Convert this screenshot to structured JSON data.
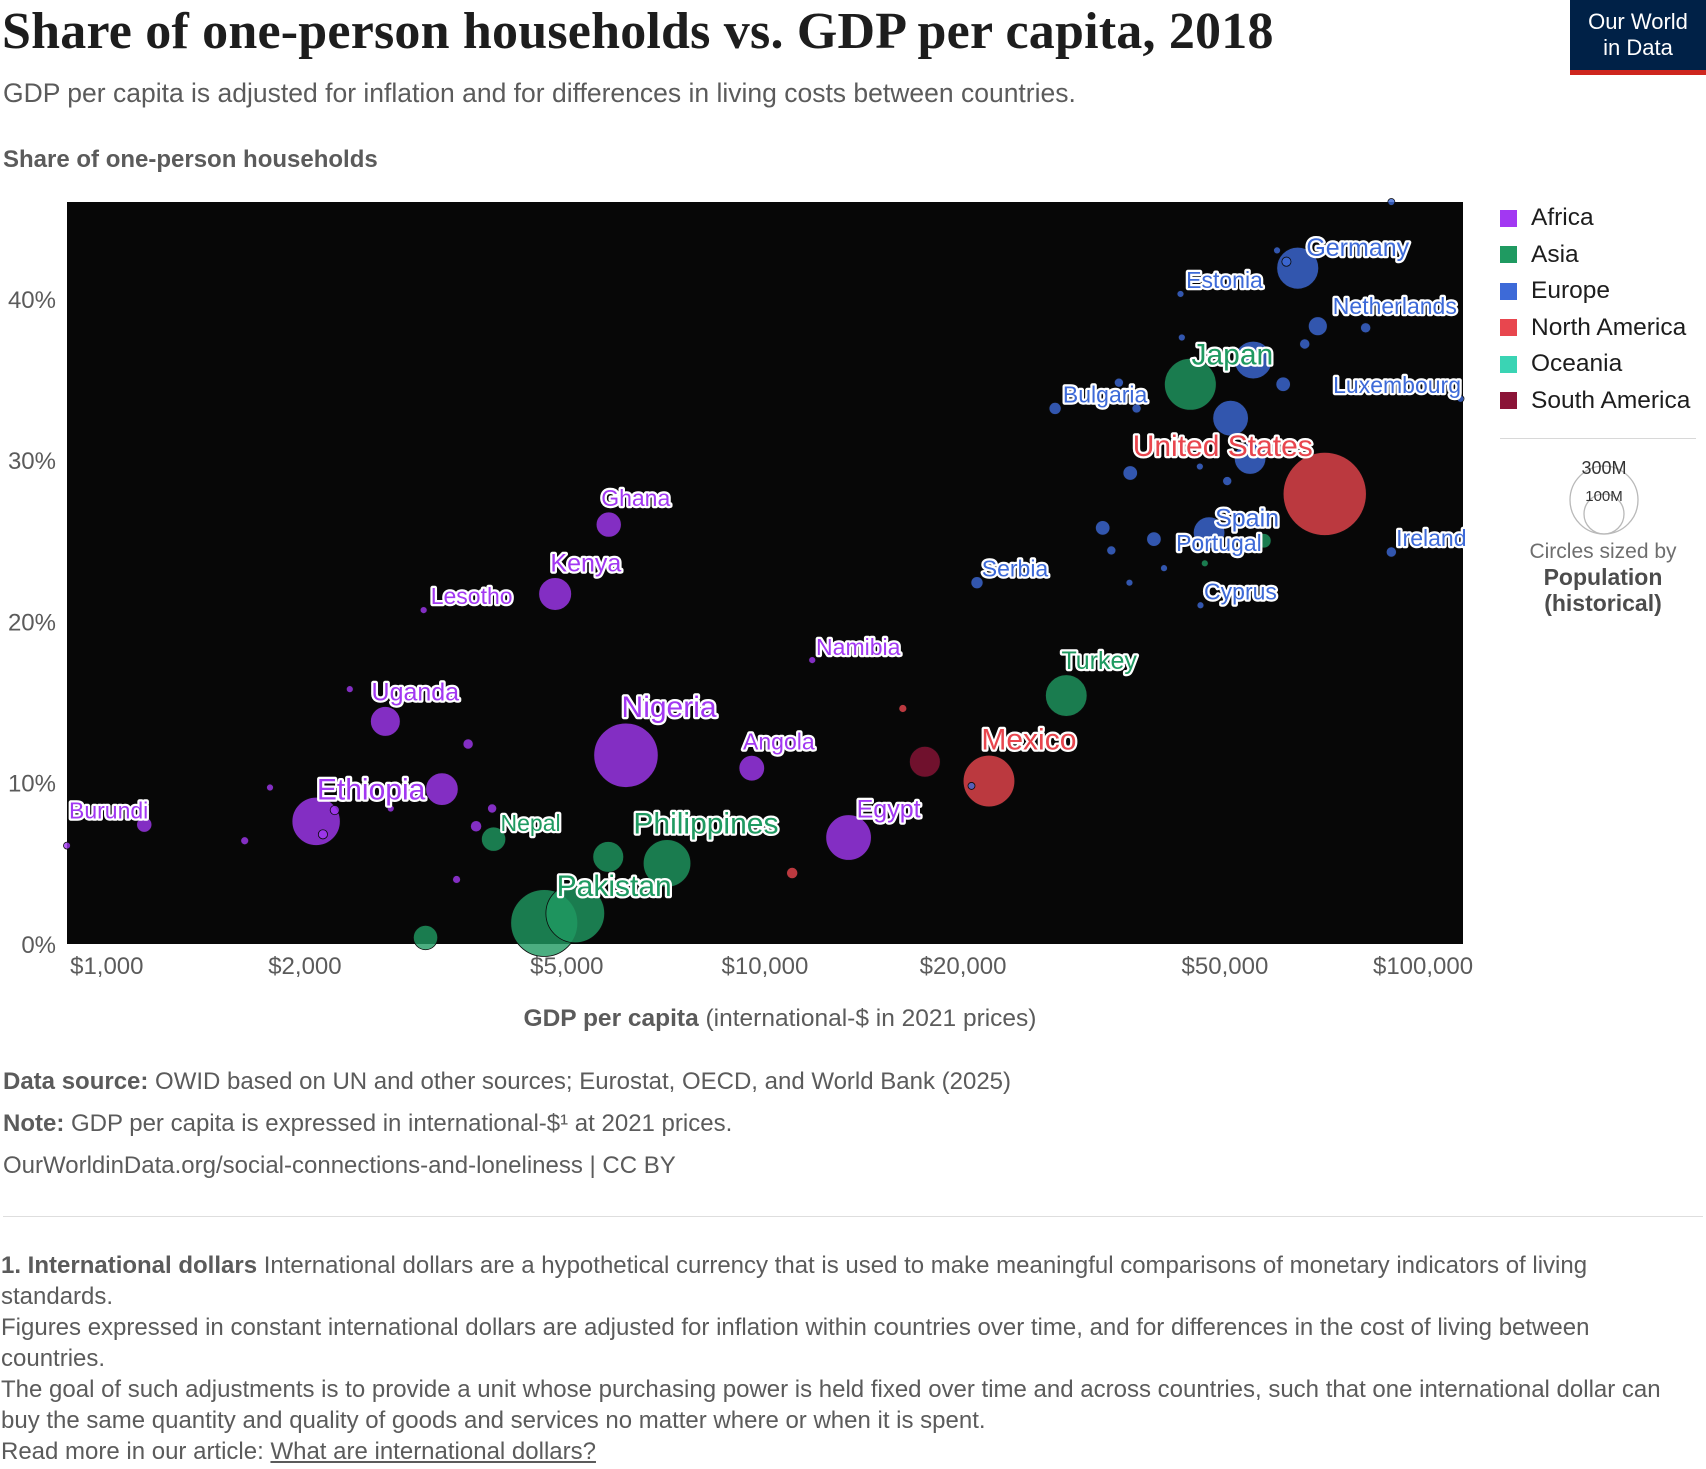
{
  "header": {
    "title": "Share of one-person households vs. GDP per capita, 2018",
    "subtitle": "GDP per capita is adjusted for inflation and for differences in living costs between countries.",
    "logo_line1": "Our World",
    "logo_line2": "in Data",
    "y_axis_title": "Share of one-person households"
  },
  "legend": {
    "items": [
      {
        "label": "Africa",
        "color": "#a238f2"
      },
      {
        "label": "Asia",
        "color": "#1f9a61"
      },
      {
        "label": "Europe",
        "color": "#3d6ad8"
      },
      {
        "label": "North America",
        "color": "#e8464e"
      },
      {
        "label": "Oceania",
        "color": "#3ad4b4"
      },
      {
        "label": "South America",
        "color": "#8b1437"
      }
    ],
    "size_big": "300M",
    "size_small": "100M",
    "size_caption": "Circles sized by",
    "size_caption_bold1": "Population",
    "size_caption_bold2": "(historical)"
  },
  "chart_data": {
    "type": "scatter",
    "title": "Share of one-person households vs. GDP per capita, 2018",
    "xlabel_bold": "GDP per capita",
    "xlabel_rest": " (international-$ in 2021 prices)",
    "ylabel": "Share of one-person households",
    "x_scale": "log",
    "xlim": [
      870,
      115000
    ],
    "ylim": [
      0,
      46
    ],
    "x_ticks": [
      1000,
      2000,
      5000,
      10000,
      20000,
      50000,
      100000
    ],
    "x_tick_labels": [
      "$1,000",
      "$2,000",
      "$5,000",
      "$10,000",
      "$20,000",
      "$50,000",
      "$100,000"
    ],
    "y_ticks": [
      0,
      10,
      20,
      30,
      40
    ],
    "y_tick_labels": [
      "0%",
      "10%",
      "20%",
      "30%",
      "40%"
    ],
    "grid": false,
    "background": "#070707",
    "legend_position": "right",
    "size_by": "population",
    "points": [
      {
        "name": "Burundi",
        "label": "Burundi",
        "region": "Africa",
        "x": 1140,
        "y": 7.4,
        "pop": 11
      },
      {
        "name": "",
        "region": "Africa",
        "x": 870,
        "y": 6.1,
        "pop": 2
      },
      {
        "name": "",
        "region": "Africa",
        "x": 1620,
        "y": 6.4,
        "pop": 3
      },
      {
        "name": "",
        "region": "Africa",
        "x": 1770,
        "y": 9.7,
        "pop": 1
      },
      {
        "name": "Ethiopia",
        "label": "Ethiopia",
        "region": "Africa",
        "x": 2080,
        "y": 7.6,
        "pop": 110
      },
      {
        "name": "",
        "region": "Africa",
        "x": 2130,
        "y": 6.8,
        "pop": 4
      },
      {
        "name": "",
        "region": "Africa",
        "x": 2220,
        "y": 8.3,
        "pop": 4
      },
      {
        "name": "",
        "region": "Africa",
        "x": 2340,
        "y": 15.8,
        "pop": 2
      },
      {
        "name": "Uganda",
        "label": "Uganda",
        "region": "Africa",
        "x": 2650,
        "y": 13.8,
        "pop": 42
      },
      {
        "name": "",
        "region": "Africa",
        "x": 2700,
        "y": 8.4,
        "pop": 1
      },
      {
        "name": "Lesotho",
        "label": "Lesotho",
        "region": "Africa",
        "x": 3030,
        "y": 20.7,
        "pop": 2
      },
      {
        "name": "",
        "region": "Africa",
        "x": 3230,
        "y": 9.6,
        "pop": 50
      },
      {
        "name": "",
        "region": "Africa",
        "x": 3540,
        "y": 12.4,
        "pop": 5
      },
      {
        "name": "",
        "region": "Africa",
        "x": 3400,
        "y": 4.0,
        "pop": 3
      },
      {
        "name": "",
        "region": "Africa",
        "x": 3640,
        "y": 7.3,
        "pop": 6
      },
      {
        "name": "",
        "region": "Africa",
        "x": 3850,
        "y": 8.4,
        "pop": 4
      },
      {
        "name": "Kenya",
        "label": "Kenya",
        "region": "Africa",
        "x": 4800,
        "y": 21.7,
        "pop": 51
      },
      {
        "name": "Ghana",
        "label": "Ghana",
        "region": "Africa",
        "x": 5790,
        "y": 26.0,
        "pop": 30
      },
      {
        "name": "Nigeria",
        "label": "Nigeria",
        "region": "Africa",
        "x": 6150,
        "y": 11.7,
        "pop": 196
      },
      {
        "name": "Angola",
        "label": "Angola",
        "region": "Africa",
        "x": 9550,
        "y": 10.9,
        "pop": 31
      },
      {
        "name": "Namibia",
        "label": "Namibia",
        "region": "Africa",
        "x": 11800,
        "y": 17.6,
        "pop": 2
      },
      {
        "name": "Egypt",
        "label": "Egypt",
        "region": "Africa",
        "x": 13400,
        "y": 6.6,
        "pop": 98
      },
      {
        "name": "",
        "region": "Asia",
        "x": 3050,
        "y": 0.4,
        "pop": 28
      },
      {
        "name": "Nepal",
        "label": "Nepal",
        "region": "Asia",
        "x": 3870,
        "y": 6.5,
        "pop": 28
      },
      {
        "name": "Pakistan",
        "label": "Pakistan",
        "region": "Asia",
        "x": 4620,
        "y": 1.3,
        "pop": 212
      },
      {
        "name": "",
        "region": "Asia",
        "x": 5150,
        "y": 1.9,
        "pop": 163
      },
      {
        "name": "",
        "region": "Asia",
        "x": 5780,
        "y": 5.4,
        "pop": 45
      },
      {
        "name": "Philippines",
        "label": "Philippines",
        "region": "Asia",
        "x": 7100,
        "y": 5.0,
        "pop": 107
      },
      {
        "name": "Turkey",
        "label": "Turkey",
        "region": "Asia",
        "x": 28700,
        "y": 15.4,
        "pop": 82
      },
      {
        "name": "Japan",
        "label": "Japan",
        "region": "Asia",
        "x": 44300,
        "y": 34.7,
        "pop": 127
      },
      {
        "name": "",
        "region": "Asia",
        "x": 46600,
        "y": 23.6,
        "pop": 2
      },
      {
        "name": "",
        "region": "Asia",
        "x": 57300,
        "y": 25.0,
        "pop": 10
      },
      {
        "name": "Germany",
        "label": "Germany",
        "region": "Europe",
        "x": 64500,
        "y": 41.9,
        "pop": 83
      },
      {
        "name": "",
        "region": "Europe",
        "x": 60000,
        "y": 43.0,
        "pop": 2
      },
      {
        "name": "",
        "region": "Europe",
        "x": 62000,
        "y": 42.3,
        "pop": 4
      },
      {
        "name": "Estonia",
        "label": "Estonia",
        "region": "Europe",
        "x": 42800,
        "y": 40.3,
        "pop": 1
      },
      {
        "name": "Netherlands",
        "label": "Netherlands",
        "region": "Europe",
        "x": 69200,
        "y": 38.3,
        "pop": 17
      },
      {
        "name": "",
        "region": "Europe",
        "x": 81800,
        "y": 38.2,
        "pop": 5
      },
      {
        "name": "",
        "region": "Europe",
        "x": 66100,
        "y": 37.2,
        "pop": 5
      },
      {
        "name": "",
        "region": "Europe",
        "x": 43000,
        "y": 37.6,
        "pop": 1
      },
      {
        "name": "",
        "region": "Europe",
        "x": 55200,
        "y": 36.2,
        "pop": 67
      },
      {
        "name": "",
        "region": "Europe",
        "x": 61300,
        "y": 34.7,
        "pop": 10
      },
      {
        "name": "Bulgaria",
        "label": "Bulgaria",
        "region": "Europe",
        "x": 27600,
        "y": 33.2,
        "pop": 7
      },
      {
        "name": "",
        "region": "Europe",
        "x": 34500,
        "y": 34.8,
        "pop": 4
      },
      {
        "name": "",
        "region": "Europe",
        "x": 36700,
        "y": 33.2,
        "pop": 4
      },
      {
        "name": "Luxembourg",
        "label": "Luxembourg",
        "region": "Europe",
        "x": 114000,
        "y": 33.8,
        "pop": 1
      },
      {
        "name": "",
        "region": "Europe",
        "x": 51000,
        "y": 32.6,
        "pop": 60
      },
      {
        "name": "United States",
        "label": "United States",
        "region": "North America",
        "x": 70900,
        "y": 27.9,
        "pop": 327
      },
      {
        "name": "",
        "region": "Europe",
        "x": 54600,
        "y": 30.1,
        "pop": 47
      },
      {
        "name": "",
        "region": "Europe",
        "x": 35900,
        "y": 29.2,
        "pop": 10
      },
      {
        "name": "",
        "region": "Europe",
        "x": 45800,
        "y": 29.6,
        "pop": 1
      },
      {
        "name": "",
        "region": "Europe",
        "x": 50400,
        "y": 28.7,
        "pop": 4
      },
      {
        "name": "Spain",
        "label": "Spain",
        "region": "Europe",
        "x": 47300,
        "y": 25.5,
        "pop": 47
      },
      {
        "name": "Portugal",
        "label": "Portugal",
        "region": "Europe",
        "x": 39000,
        "y": 25.1,
        "pop": 10
      },
      {
        "name": "",
        "region": "Europe",
        "x": 32600,
        "y": 25.8,
        "pop": 10
      },
      {
        "name": "",
        "region": "Europe",
        "x": 33600,
        "y": 24.4,
        "pop": 4
      },
      {
        "name": "Ireland",
        "label": "Ireland",
        "region": "Europe",
        "x": 89500,
        "y": 24.3,
        "pop": 5
      },
      {
        "name": "",
        "region": "Europe",
        "x": 40400,
        "y": 23.3,
        "pop": 2
      },
      {
        "name": "",
        "region": "Europe",
        "x": 35800,
        "y": 22.4,
        "pop": 2
      },
      {
        "name": "Serbia",
        "label": "Serbia",
        "region": "Europe",
        "x": 21000,
        "y": 22.4,
        "pop": 7
      },
      {
        "name": "Cyprus",
        "label": "Cyprus",
        "region": "Europe",
        "x": 45900,
        "y": 21.0,
        "pop": 1
      },
      {
        "name": "",
        "region": "Europe",
        "x": 89500,
        "y": 46.0,
        "pop": 1
      },
      {
        "name": "Mexico",
        "label": "Mexico",
        "region": "North America",
        "x": 21900,
        "y": 10.1,
        "pop": 126
      },
      {
        "name": "",
        "region": "North America",
        "x": 16200,
        "y": 14.6,
        "pop": 3
      },
      {
        "name": "",
        "region": "North America",
        "x": 11000,
        "y": 4.4,
        "pop": 6
      },
      {
        "name": "",
        "region": "South America",
        "x": 17500,
        "y": 11.3,
        "pop": 45
      },
      {
        "name": "",
        "region": "Europe",
        "x": 20600,
        "y": 9.8,
        "pop": 1
      }
    ]
  },
  "footer": {
    "source_label": "Data source:",
    "source_text": " OWID based on UN and other sources; Eurostat, OECD, and World Bank (2025)",
    "note_label": "Note:",
    "note_text": " GDP per capita is expressed in international-$¹ at 2021 prices.",
    "url_text": "OurWorldinData.org/social-connections-and-loneliness | CC BY"
  },
  "notes": {
    "heading": "1. International dollars",
    "p1": " International dollars are a hypothetical currency that is used to make meaningful comparisons of monetary indicators of living standards.",
    "p2": "Figures expressed in constant international dollars are adjusted for inflation within countries over time, and for differences in the cost of living between countries.",
    "p3": "The goal of such adjustments is to provide a unit whose purchasing power is held fixed over time and across countries, such that one international dollar can buy the same quantity and quality of goods and services no matter where or when it is spent.",
    "read_more": "Read more in our article: ",
    "link_text": "What are international dollars?"
  }
}
